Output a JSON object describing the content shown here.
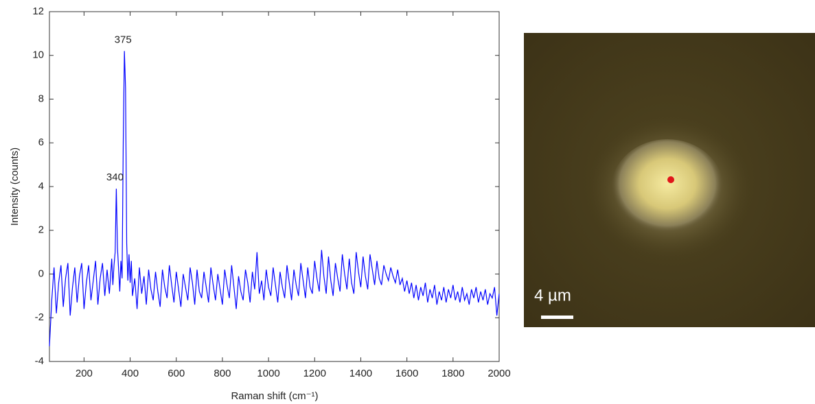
{
  "chart_data": {
    "type": "line",
    "color": "#0000ff",
    "xlabel": "Raman shift (cm⁻¹)",
    "ylabel": "Intensity (counts)",
    "xlim": [
      50,
      2000
    ],
    "ylim": [
      -4,
      12
    ],
    "xticks": [
      200,
      400,
      600,
      800,
      1000,
      1200,
      1400,
      1600,
      1800,
      2000
    ],
    "yticks": [
      -4,
      -2,
      0,
      2,
      4,
      6,
      8,
      10,
      12
    ],
    "grid": false,
    "annotations": [
      {
        "value": 340,
        "label": "340"
      },
      {
        "value": 375,
        "label": "375"
      }
    ],
    "x": [
      50,
      60,
      70,
      80,
      90,
      100,
      110,
      120,
      130,
      140,
      150,
      160,
      170,
      180,
      190,
      200,
      210,
      220,
      230,
      240,
      250,
      260,
      270,
      280,
      290,
      300,
      310,
      320,
      325,
      330,
      335,
      340,
      345,
      350,
      355,
      360,
      365,
      370,
      375,
      380,
      385,
      390,
      395,
      400,
      405,
      410,
      420,
      430,
      440,
      450,
      460,
      470,
      480,
      490,
      500,
      510,
      520,
      530,
      540,
      550,
      560,
      570,
      580,
      590,
      600,
      610,
      620,
      630,
      640,
      650,
      660,
      670,
      680,
      690,
      700,
      710,
      720,
      730,
      740,
      750,
      760,
      770,
      780,
      790,
      800,
      810,
      820,
      830,
      840,
      850,
      860,
      870,
      880,
      890,
      900,
      910,
      920,
      930,
      940,
      950,
      960,
      970,
      980,
      990,
      1000,
      1010,
      1020,
      1030,
      1040,
      1050,
      1060,
      1070,
      1080,
      1090,
      1100,
      1110,
      1120,
      1130,
      1140,
      1150,
      1160,
      1170,
      1180,
      1190,
      1200,
      1210,
      1220,
      1230,
      1240,
      1250,
      1260,
      1270,
      1280,
      1290,
      1300,
      1310,
      1320,
      1330,
      1340,
      1350,
      1360,
      1370,
      1380,
      1390,
      1400,
      1410,
      1420,
      1430,
      1440,
      1450,
      1460,
      1470,
      1480,
      1490,
      1500,
      1510,
      1520,
      1530,
      1540,
      1550,
      1560,
      1570,
      1580,
      1590,
      1600,
      1610,
      1620,
      1630,
      1640,
      1650,
      1660,
      1670,
      1680,
      1690,
      1700,
      1710,
      1720,
      1730,
      1740,
      1750,
      1760,
      1770,
      1780,
      1790,
      1800,
      1810,
      1820,
      1830,
      1840,
      1850,
      1860,
      1870,
      1880,
      1890,
      1900,
      1910,
      1920,
      1930,
      1940,
      1950,
      1960,
      1970,
      1980,
      1990,
      2000
    ],
    "values": [
      -3.3,
      -1.2,
      0.3,
      -1.8,
      -0.4,
      0.4,
      -1.5,
      -0.2,
      0.5,
      -1.9,
      -0.6,
      0.3,
      -1.3,
      -0.1,
      0.5,
      -1.6,
      -0.4,
      0.4,
      -1.2,
      -0.3,
      0.6,
      -1.4,
      -0.2,
      0.5,
      -1.0,
      0.2,
      -0.9,
      0.7,
      -0.5,
      0.4,
      1.0,
      3.9,
      1.2,
      0.2,
      -0.8,
      0.6,
      -0.2,
      6.0,
      10.2,
      8.5,
      1.4,
      -0.3,
      0.9,
      -0.4,
      0.6,
      -1.0,
      -0.2,
      -1.6,
      0.3,
      -0.9,
      -0.1,
      -1.4,
      0.2,
      -0.7,
      -1.2,
      0.1,
      -0.8,
      -1.5,
      0.2,
      -0.6,
      -1.1,
      0.4,
      -0.5,
      -1.3,
      0.1,
      -0.7,
      -1.5,
      0.0,
      -0.6,
      -1.2,
      0.3,
      -0.4,
      -1.4,
      0.2,
      -0.8,
      -1.1,
      0.1,
      -0.6,
      -1.3,
      0.3,
      -0.5,
      -1.2,
      0.0,
      -0.7,
      -1.4,
      0.2,
      -0.5,
      -1.1,
      0.4,
      -0.6,
      -1.6,
      -0.1,
      -0.8,
      -1.2,
      0.2,
      -0.4,
      -1.3,
      0.1,
      -0.7,
      1.0,
      -0.9,
      -0.3,
      -1.2,
      0.2,
      -0.6,
      -1.0,
      0.3,
      -0.5,
      -1.3,
      0.1,
      -0.6,
      -1.1,
      0.4,
      -0.4,
      -1.2,
      0.2,
      -0.5,
      -1.0,
      0.5,
      -0.3,
      -1.1,
      0.3,
      -0.6,
      -0.9,
      0.6,
      -0.2,
      -0.8,
      1.1,
      -0.1,
      -0.9,
      0.8,
      -0.3,
      -1.0,
      0.5,
      -0.2,
      -0.8,
      0.9,
      0.0,
      -0.7,
      0.7,
      -0.4,
      -0.9,
      1.0,
      0.1,
      -0.6,
      0.8,
      -0.1,
      -0.7,
      0.9,
      0.2,
      -0.5,
      0.6,
      -0.2,
      -0.5,
      0.4,
      0.0,
      -0.3,
      0.3,
      -0.1,
      -0.4,
      0.2,
      -0.5,
      -0.2,
      -0.8,
      -0.3,
      -0.9,
      -0.4,
      -1.1,
      -0.5,
      -1.2,
      -0.6,
      -1.0,
      -0.4,
      -1.3,
      -0.7,
      -1.1,
      -0.5,
      -1.4,
      -0.8,
      -1.2,
      -0.6,
      -1.3,
      -0.7,
      -1.1,
      -0.5,
      -1.2,
      -0.8,
      -1.3,
      -0.6,
      -1.2,
      -0.9,
      -1.4,
      -0.7,
      -1.1,
      -0.6,
      -1.3,
      -0.8,
      -1.2,
      -0.7,
      -1.4,
      -0.9,
      -1.1,
      -0.6,
      -1.9,
      -0.9
    ]
  },
  "image": {
    "scale_label": "4 µm"
  }
}
